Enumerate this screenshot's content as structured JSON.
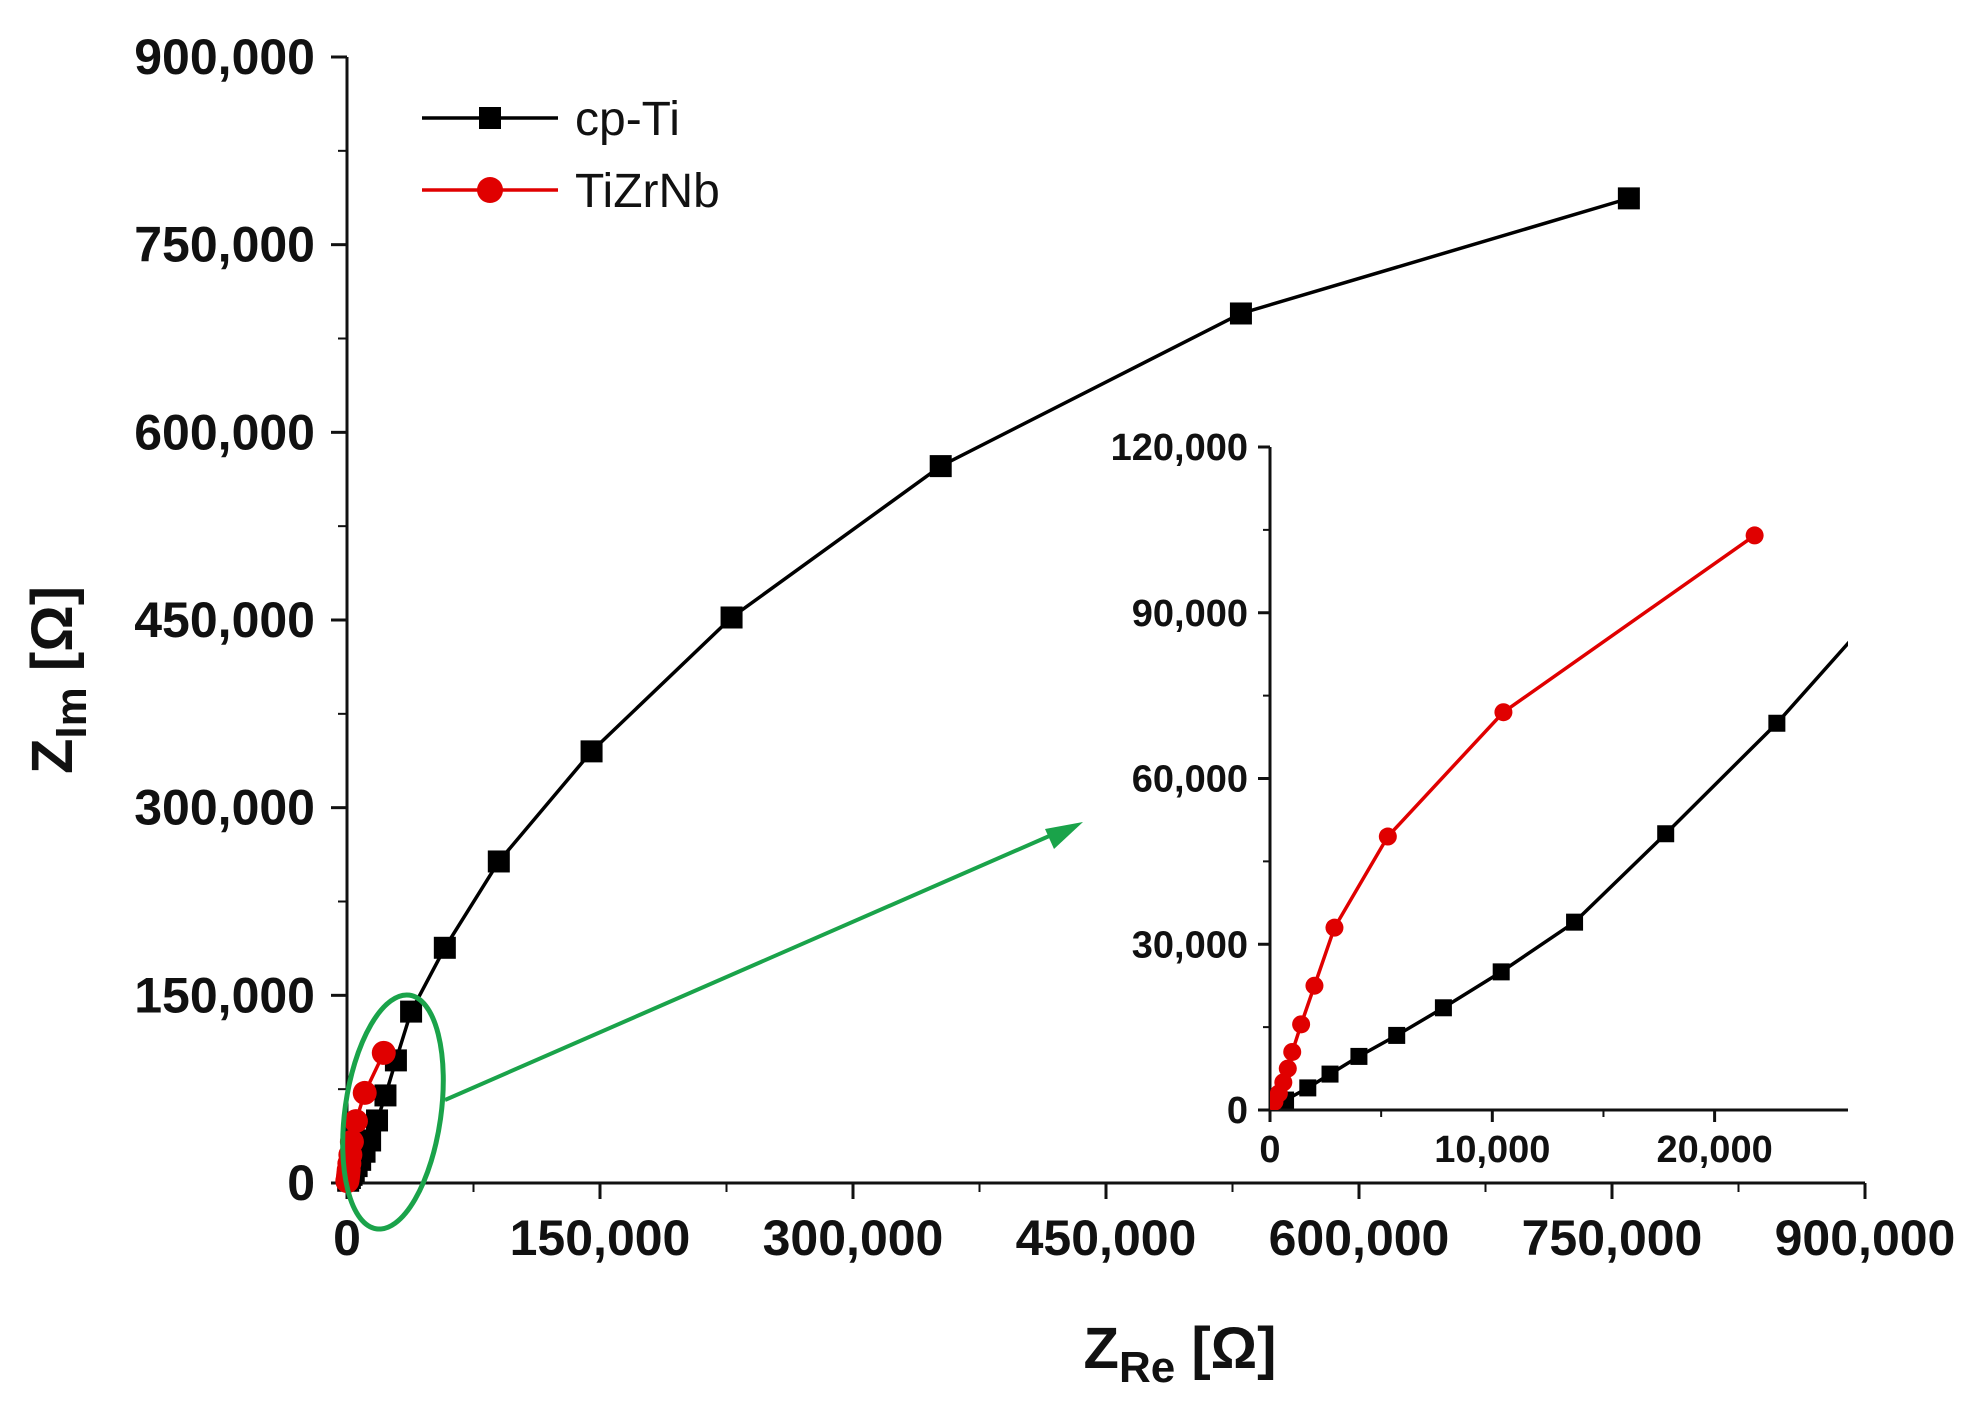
{
  "chart_data": {
    "type": "scatter",
    "main": {
      "xlabel": {
        "base": "Z",
        "sub": "Re",
        "unit": " [Ω]"
      },
      "ylabel": {
        "base": "Z",
        "sub": "Im",
        "unit": " [Ω]"
      },
      "xlim": [
        0,
        900000
      ],
      "ylim": [
        0,
        900000
      ],
      "xticks": [
        0,
        150000,
        300000,
        450000,
        600000,
        750000,
        900000
      ],
      "yticks": [
        0,
        150000,
        300000,
        450000,
        600000,
        750000,
        900000
      ],
      "xtick_labels": [
        "0",
        "150,000",
        "300,000",
        "450,000",
        "600,000",
        "750,000",
        "900,000"
      ],
      "ytick_labels": [
        "0",
        "150,000",
        "300,000",
        "450,000",
        "600,000",
        "750,000",
        "900,000"
      ],
      "grid": false,
      "legend_position": "top-left"
    },
    "inset": {
      "xlim": [
        0,
        26000
      ],
      "ylim": [
        0,
        120000
      ],
      "xticks": [
        0,
        10000,
        20000
      ],
      "yticks": [
        0,
        30000,
        60000,
        90000,
        120000
      ],
      "xtick_labels": [
        "0",
        "10,000",
        "20,000"
      ],
      "ytick_labels": [
        "0",
        "30,000",
        "60,000",
        "90,000",
        "120,000"
      ],
      "location": "center-right"
    },
    "series": [
      {
        "name": "cp-Ti",
        "color": "#000000",
        "marker": "square",
        "x": [
          700,
          1700,
          2700,
          4000,
          5700,
          7800,
          10400,
          13700,
          17800,
          22800,
          29000,
          38000,
          58000,
          90000,
          145000,
          228000,
          352000,
          530000,
          760000
        ],
        "y": [
          1800,
          4000,
          6500,
          9700,
          13500,
          18500,
          25000,
          34000,
          50000,
          70000,
          98000,
          137000,
          188000,
          257000,
          345000,
          452000,
          573000,
          695000,
          787000
        ]
      },
      {
        "name": "TiZrNb",
        "color": "#e00000",
        "marker": "circle",
        "x": [
          200,
          400,
          600,
          800,
          1000,
          1400,
          2000,
          2900,
          5300,
          10500,
          21800
        ],
        "y": [
          1500,
          3000,
          5000,
          7500,
          10500,
          15500,
          22500,
          33000,
          49500,
          72000,
          104000
        ]
      }
    ],
    "annotation": {
      "type": "zoom-callout",
      "shape": "ellipse",
      "color": "#1aa34a"
    }
  }
}
